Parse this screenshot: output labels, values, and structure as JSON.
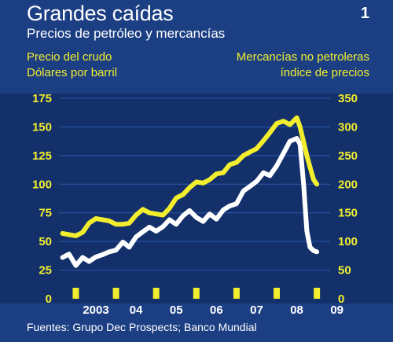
{
  "header": {
    "title": "Grandes caídas",
    "subtitle": "Precios de petróleo y mercancías",
    "figure_number": "1"
  },
  "axis_titles": {
    "left_line1": "Precio del crudo",
    "left_line2": "Dólares por barril",
    "right_line1": "Mercancías no petroleras",
    "right_line2": "índice de precios"
  },
  "footer": {
    "source": "Fuentes: Grupo Dec Prospects;  Banco Mundial"
  },
  "colors": {
    "background": "#1c3f84",
    "plot_background": "#13306b",
    "oil_line": "#f2ee2e",
    "non_oil_line": "#ffffff",
    "grid": "#2c57a8"
  },
  "chart_data": {
    "type": "line",
    "x_ticks": [
      "2003",
      "04",
      "05",
      "06",
      "07",
      "08",
      "09"
    ],
    "x_range": [
      2002.58,
      2009.33
    ],
    "left_axis": {
      "ticks": [
        0,
        25,
        50,
        75,
        100,
        125,
        150,
        175
      ],
      "ylim": [
        0,
        175
      ]
    },
    "right_axis": {
      "ticks": [
        0,
        50,
        100,
        150,
        200,
        250,
        300,
        350
      ],
      "ylim": [
        0,
        350
      ]
    },
    "grid": true,
    "series": [
      {
        "axis": "left",
        "x": [
          2002.67,
          2002.83,
          2003.0,
          2003.17,
          2003.33,
          2003.5,
          2003.67,
          2003.83,
          2004.0,
          2004.17,
          2004.33,
          2004.5,
          2004.67,
          2004.83,
          2005.0,
          2005.17,
          2005.33,
          2005.5,
          2005.67,
          2005.83,
          2006.0,
          2006.17,
          2006.33,
          2006.5,
          2006.67,
          2006.83,
          2007.0,
          2007.17,
          2007.33,
          2007.5,
          2007.67,
          2007.83,
          2008.0,
          2008.17,
          2008.33,
          2008.5,
          2008.58,
          2008.67,
          2008.75,
          2008.83,
          2008.92,
          2009.0
        ],
        "values": [
          57,
          56,
          55,
          58,
          66,
          70,
          69,
          68,
          65,
          65,
          66,
          73,
          78,
          75,
          74,
          73,
          79,
          88,
          91,
          97,
          102,
          101,
          104,
          109,
          110,
          117,
          119,
          125,
          128,
          131,
          138,
          145,
          153,
          155,
          152,
          158,
          150,
          137,
          125,
          115,
          104,
          100
        ]
      },
      {
        "axis": "right",
        "x": [
          2002.67,
          2002.83,
          2003.0,
          2003.17,
          2003.33,
          2003.5,
          2003.67,
          2003.83,
          2004.0,
          2004.17,
          2004.33,
          2004.5,
          2004.67,
          2004.83,
          2005.0,
          2005.17,
          2005.33,
          2005.5,
          2005.67,
          2005.83,
          2006.0,
          2006.17,
          2006.33,
          2006.5,
          2006.67,
          2006.83,
          2007.0,
          2007.17,
          2007.33,
          2007.5,
          2007.67,
          2007.83,
          2008.0,
          2008.17,
          2008.33,
          2008.5,
          2008.58,
          2008.67,
          2008.75,
          2008.83,
          2008.92,
          2009.0
        ],
        "values": [
          72,
          78,
          58,
          72,
          65,
          73,
          77,
          82,
          85,
          99,
          90,
          108,
          117,
          125,
          118,
          126,
          138,
          130,
          145,
          154,
          142,
          135,
          148,
          139,
          155,
          162,
          166,
          188,
          196,
          205,
          220,
          215,
          232,
          254,
          275,
          280,
          270,
          200,
          118,
          90,
          84,
          82
        ]
      }
    ]
  }
}
